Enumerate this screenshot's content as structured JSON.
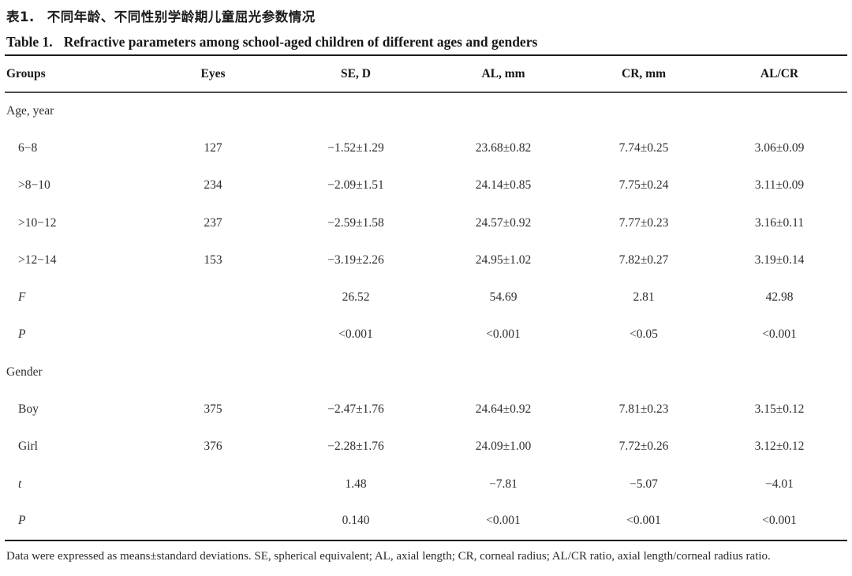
{
  "titles": {
    "zh_label": "表1.",
    "zh_text": "不同年龄、不同性别学龄期儿童屈光参数情况",
    "en_label": "Table 1.",
    "en_text": "Refractive parameters among school-aged children of different ages and genders"
  },
  "chart_data": {
    "type": "table",
    "title": "Table 1. Refractive parameters among school-aged children of different ages and genders",
    "columns": [
      "Groups",
      "Eyes",
      "SE, D",
      "AL, mm",
      "CR, mm",
      "AL/CR"
    ],
    "sections": [
      {
        "section": "Age, year",
        "rows": [
          {
            "group": "6−8",
            "eyes": 127,
            "se": "−1.52±1.29",
            "al": "23.68±0.82",
            "cr": "7.74±0.25",
            "alcr": "3.06±0.09"
          },
          {
            "group": ">8−10",
            "eyes": 234,
            "se": "−2.09±1.51",
            "al": "24.14±0.85",
            "cr": "7.75±0.24",
            "alcr": "3.11±0.09"
          },
          {
            "group": ">10−12",
            "eyes": 237,
            "se": "−2.59±1.58",
            "al": "24.57±0.92",
            "cr": "7.77±0.23",
            "alcr": "3.16±0.11"
          },
          {
            "group": ">12−14",
            "eyes": 153,
            "se": "−3.19±2.26",
            "al": "24.95±1.02",
            "cr": "7.82±0.27",
            "alcr": "3.19±0.14"
          },
          {
            "group": "F",
            "se": 26.52,
            "al": 54.69,
            "cr": 2.81,
            "alcr": 42.98
          },
          {
            "group": "P",
            "se": "<0.001",
            "al": "<0.001",
            "cr": "<0.05",
            "alcr": "<0.001"
          }
        ]
      },
      {
        "section": "Gender",
        "rows": [
          {
            "group": "Boy",
            "eyes": 375,
            "se": "−2.47±1.76",
            "al": "24.64±0.92",
            "cr": "7.81±0.23",
            "alcr": "3.15±0.12"
          },
          {
            "group": "Girl",
            "eyes": 376,
            "se": "−2.28±1.76",
            "al": "24.09±1.00",
            "cr": "7.72±0.26",
            "alcr": "3.12±0.12"
          },
          {
            "group": "t",
            "se": 1.48,
            "al": "−7.81",
            "cr": "−5.07",
            "alcr": "−4.01"
          },
          {
            "group": "P",
            "se": 0.14,
            "al": "<0.001",
            "cr": "<0.001",
            "alcr": "<0.001"
          }
        ]
      }
    ]
  },
  "table": {
    "headers": [
      "Groups",
      "Eyes",
      "SE, D",
      "AL, mm",
      "CR, mm",
      "AL/CR"
    ],
    "rows": [
      {
        "label": "Age, year",
        "values": [
          "",
          "",
          "",
          "",
          ""
        ]
      },
      {
        "label": "6−8",
        "values": [
          "127",
          "−1.52±1.29",
          "23.68±0.82",
          "7.74±0.25",
          "3.06±0.09"
        ]
      },
      {
        "label": ">8−10",
        "values": [
          "234",
          "−2.09±1.51",
          "24.14±0.85",
          "7.75±0.24",
          "3.11±0.09"
        ]
      },
      {
        "label": ">10−12",
        "values": [
          "237",
          "−2.59±1.58",
          "24.57±0.92",
          "7.77±0.23",
          "3.16±0.11"
        ]
      },
      {
        "label": ">12−14",
        "values": [
          "153",
          "−3.19±2.26",
          "24.95±1.02",
          "7.82±0.27",
          "3.19±0.14"
        ]
      },
      {
        "label": "F",
        "values": [
          "",
          "26.52",
          "54.69",
          "2.81",
          "42.98"
        ]
      },
      {
        "label": "P",
        "values": [
          "",
          "<0.001",
          "<0.001",
          "<0.05",
          "<0.001"
        ]
      },
      {
        "label": "Gender",
        "values": [
          "",
          "",
          "",
          "",
          ""
        ]
      },
      {
        "label": "Boy",
        "values": [
          "375",
          "−2.47±1.76",
          "24.64±0.92",
          "7.81±0.23",
          "3.15±0.12"
        ]
      },
      {
        "label": "Girl",
        "values": [
          "376",
          "−2.28±1.76",
          "24.09±1.00",
          "7.72±0.26",
          "3.12±0.12"
        ]
      },
      {
        "label": "t",
        "values": [
          "",
          "1.48",
          "−7.81",
          "−5.07",
          "−4.01"
        ]
      },
      {
        "label": "P",
        "values": [
          "",
          "0.140",
          "<0.001",
          "<0.001",
          "<0.001"
        ]
      }
    ]
  },
  "footnote": "Data were expressed as means±standard deviations. SE, spherical equivalent; AL, axial length; CR, corneal radius; AL/CR ratio, axial length/corneal radius ratio."
}
